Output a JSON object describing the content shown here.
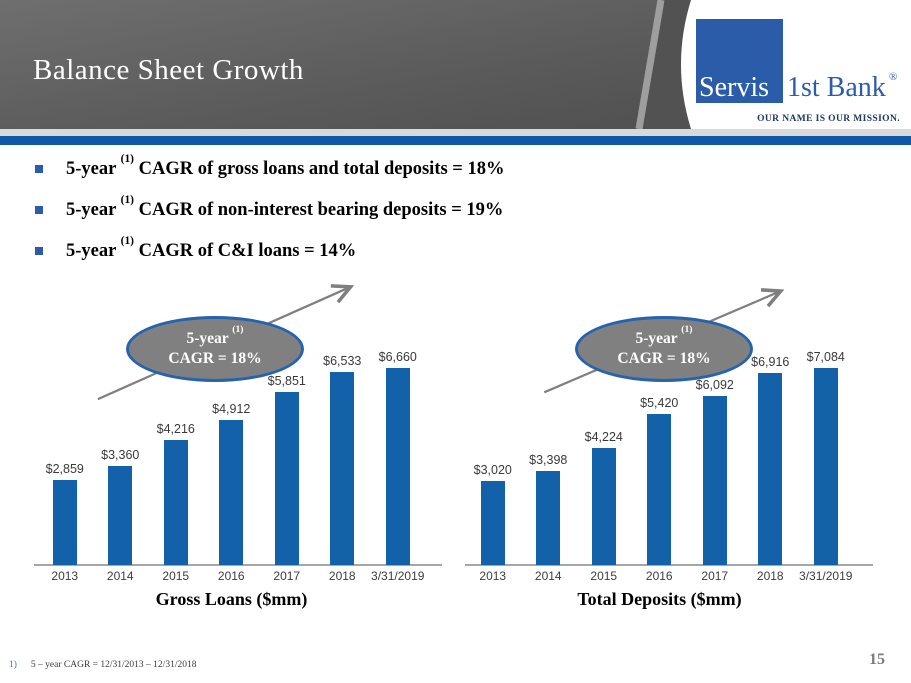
{
  "header": {
    "title": "Balance Sheet Growth"
  },
  "logo": {
    "name_part1": "Servis",
    "name_part2": "1st Bank",
    "registered": "®",
    "tagline": "OUR NAME IS OUR MISSION."
  },
  "bullets": [
    {
      "before": "5-year ",
      "sup": "(1)",
      "after": " CAGR of gross loans and total deposits = 18%"
    },
    {
      "before": "5-year ",
      "sup": "(1)",
      "after": " CAGR of non-interest bearing deposits = 19%"
    },
    {
      "before": "5-year ",
      "sup": "(1)",
      "after": " CAGR of C&I loans = 14%"
    }
  ],
  "chart_data": [
    {
      "type": "bar",
      "title": "Gross Loans ($mm)",
      "categories": [
        "2013",
        "2014",
        "2015",
        "2016",
        "2017",
        "2018",
        "3/31/2019"
      ],
      "values": [
        2859,
        3360,
        4216,
        4912,
        5851,
        6533,
        6660
      ],
      "value_labels": [
        "$2,859",
        "$3,360",
        "$4,216",
        "$4,912",
        "$5,851",
        "$6,533",
        "$6,660"
      ],
      "callout": {
        "line1": "5-year ",
        "sup": "(1)",
        "line2": "CAGR = 18%"
      },
      "xlabel": "",
      "ylabel": "",
      "ylim": [
        0,
        6660
      ],
      "grid": false,
      "legend": "none",
      "annotation": "upward trend arrow"
    },
    {
      "type": "bar",
      "title": "Total Deposits ($mm)",
      "categories": [
        "2013",
        "2014",
        "2015",
        "2016",
        "2017",
        "2018",
        "3/31/2019"
      ],
      "values": [
        3020,
        3398,
        4224,
        5420,
        6092,
        6916,
        7084
      ],
      "value_labels": [
        "$3,020",
        "$3,398",
        "$4,224",
        "$5,420",
        "$6,092",
        "$6,916",
        "$7,084"
      ],
      "callout": {
        "line1": "5-year ",
        "sup": "(1)",
        "line2": "CAGR = 18%"
      },
      "xlabel": "",
      "ylabel": "",
      "ylim": [
        0,
        7084
      ],
      "grid": false,
      "legend": "none",
      "annotation": "upward trend arrow"
    }
  ],
  "footnote": {
    "marker": "1)",
    "text": "5 – year CAGR = 12/31/2013 – 12/31/2018"
  },
  "page_number": "15",
  "colors": {
    "bar_blue": "#1261a9",
    "accent_blue": "#0f58a7",
    "logo_blue": "#2a5caa",
    "ellipse_fill": "#808080",
    "ellipse_border": "#2663ae",
    "arrow_gray": "#7f7f7f",
    "header_gray": "#5a5a5a"
  }
}
